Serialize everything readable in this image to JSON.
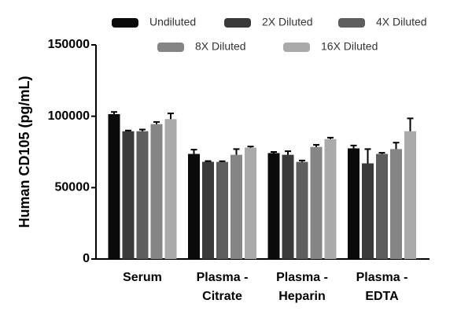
{
  "chart_data": {
    "type": "bar",
    "y_label": "Human CD105 (pg/mL)",
    "categories": [
      "Serum",
      "Plasma - Citrate",
      "Plasma - Heparin",
      "Plasma - EDTA"
    ],
    "series": [
      {
        "name": "Undiluted",
        "color": "#0a0a0a",
        "values": [
          101500,
          73600,
          74200,
          77500
        ],
        "errors": [
          1500,
          3000,
          800,
          2000
        ]
      },
      {
        "name": "2X Diluted",
        "color": "#3a3a3a",
        "values": [
          89500,
          68100,
          73000,
          67000
        ],
        "errors": [
          500,
          500,
          2500,
          10000
        ]
      },
      {
        "name": "4X Diluted",
        "color": "#5e5e5e",
        "values": [
          89500,
          68000,
          68000,
          73600
        ],
        "errors": [
          1200,
          500,
          1000,
          800
        ]
      },
      {
        "name": "8X Diluted",
        "color": "#858585",
        "values": [
          94500,
          73000,
          78500,
          77000
        ],
        "errors": [
          1500,
          4000,
          1500,
          4500
        ]
      },
      {
        "name": "16X Diluted",
        "color": "#aaaaaa",
        "values": [
          98000,
          78000,
          84000,
          89500
        ],
        "errors": [
          4000,
          800,
          1000,
          9000
        ]
      }
    ],
    "ylim": [
      0,
      150000
    ],
    "yticks": [
      0,
      50000,
      100000,
      150000
    ]
  }
}
